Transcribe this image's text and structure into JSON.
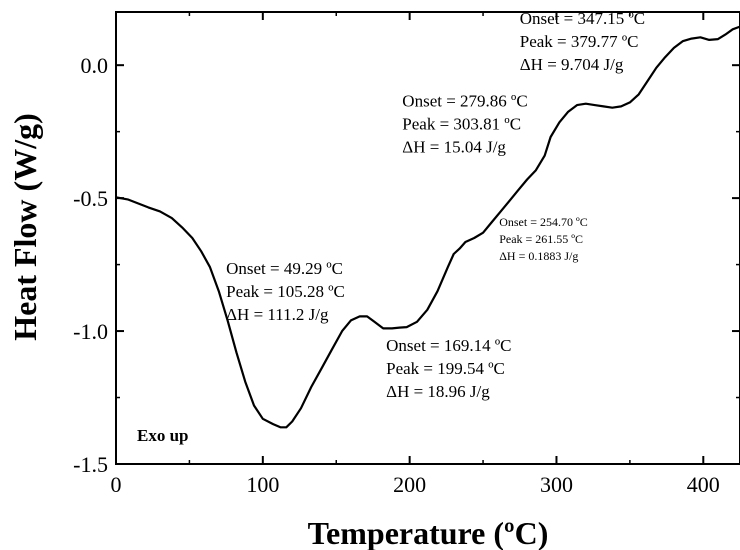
{
  "chart_data": {
    "type": "line",
    "xlabel": "Temperature (ºC)",
    "ylabel": "Heat Flow (W/g)",
    "xlim": [
      0,
      425
    ],
    "ylim": [
      -1.5,
      0.2
    ],
    "x_ticks": [
      {
        "value": 0,
        "label": "0"
      },
      {
        "value": 100,
        "label": "100"
      },
      {
        "value": 200,
        "label": "200"
      },
      {
        "value": 300,
        "label": "300"
      },
      {
        "value": 400,
        "label": "400"
      }
    ],
    "y_ticks": [
      {
        "value": 0.0,
        "label": "0.0"
      },
      {
        "value": -0.5,
        "label": "-0.5"
      },
      {
        "value": -1.0,
        "label": "-1.0"
      },
      {
        "value": -1.5,
        "label": "-1.5"
      }
    ],
    "grid": false,
    "exo_label": "Exo up",
    "series": [
      {
        "color": "#000000",
        "points": [
          [
            0,
            -0.497
          ],
          [
            8,
            -0.505
          ],
          [
            15,
            -0.52
          ],
          [
            22,
            -0.535
          ],
          [
            30,
            -0.55
          ],
          [
            38,
            -0.575
          ],
          [
            45,
            -0.61
          ],
          [
            52,
            -0.65
          ],
          [
            58,
            -0.7
          ],
          [
            64,
            -0.76
          ],
          [
            70,
            -0.85
          ],
          [
            76,
            -0.96
          ],
          [
            82,
            -1.08
          ],
          [
            88,
            -1.19
          ],
          [
            94,
            -1.28
          ],
          [
            100,
            -1.33
          ],
          [
            107,
            -1.35
          ],
          [
            112,
            -1.362
          ],
          [
            116,
            -1.362
          ],
          [
            120,
            -1.34
          ],
          [
            126,
            -1.29
          ],
          [
            133,
            -1.21
          ],
          [
            140,
            -1.14
          ],
          [
            147,
            -1.07
          ],
          [
            154,
            -1.0
          ],
          [
            160,
            -0.96
          ],
          [
            166,
            -0.945
          ],
          [
            171,
            -0.945
          ],
          [
            176,
            -0.965
          ],
          [
            182,
            -0.99
          ],
          [
            188,
            -0.99
          ],
          [
            193,
            -0.987
          ],
          [
            198,
            -0.985
          ],
          [
            205,
            -0.965
          ],
          [
            212,
            -0.92
          ],
          [
            219,
            -0.85
          ],
          [
            226,
            -0.76
          ],
          [
            230,
            -0.71
          ],
          [
            234,
            -0.69
          ],
          [
            238,
            -0.665
          ],
          [
            244,
            -0.65
          ],
          [
            250,
            -0.63
          ],
          [
            256,
            -0.59
          ],
          [
            262,
            -0.55
          ],
          [
            268,
            -0.51
          ],
          [
            274,
            -0.47
          ],
          [
            280,
            -0.43
          ],
          [
            286,
            -0.395
          ],
          [
            292,
            -0.34
          ],
          [
            296,
            -0.27
          ],
          [
            302,
            -0.215
          ],
          [
            308,
            -0.175
          ],
          [
            314,
            -0.15
          ],
          [
            320,
            -0.145
          ],
          [
            326,
            -0.15
          ],
          [
            332,
            -0.155
          ],
          [
            338,
            -0.16
          ],
          [
            344,
            -0.155
          ],
          [
            350,
            -0.14
          ],
          [
            356,
            -0.11
          ],
          [
            362,
            -0.06
          ],
          [
            368,
            -0.01
          ],
          [
            374,
            0.03
          ],
          [
            380,
            0.065
          ],
          [
            386,
            0.09
          ],
          [
            392,
            0.1
          ],
          [
            398,
            0.105
          ],
          [
            404,
            0.095
          ],
          [
            410,
            0.098
          ],
          [
            415,
            0.115
          ],
          [
            420,
            0.135
          ],
          [
            425,
            0.145
          ]
        ]
      }
    ],
    "annotations": [
      {
        "lines": [
          "Onset = 347.15 ºC",
          "Peak = 379.77 ºC",
          "ΔH = 9.704 J/g"
        ],
        "x": 275,
        "y": 0.155,
        "size": "normal"
      },
      {
        "lines": [
          "Onset = 279.86 ºC",
          "Peak = 303.81 ºC",
          "ΔH = 15.04 J/g"
        ],
        "x": 195,
        "y": -0.155,
        "size": "normal"
      },
      {
        "lines": [
          "Onset = 254.70 ºC",
          "Peak = 261.55 ºC",
          "ΔH = 0.1883 J/g"
        ],
        "x": 261,
        "y": -0.605,
        "size": "small"
      },
      {
        "lines": [
          "Onset = 49.29 ºC",
          "Peak = 105.28 ºC",
          "ΔH = 111.2 J/g"
        ],
        "x": 75,
        "y": -0.785,
        "size": "normal"
      },
      {
        "lines": [
          "Onset = 169.14 ºC",
          "Peak = 199.54 ºC",
          "ΔH = 18.96 J/g"
        ],
        "x": 184,
        "y": -1.075,
        "size": "normal"
      }
    ]
  }
}
